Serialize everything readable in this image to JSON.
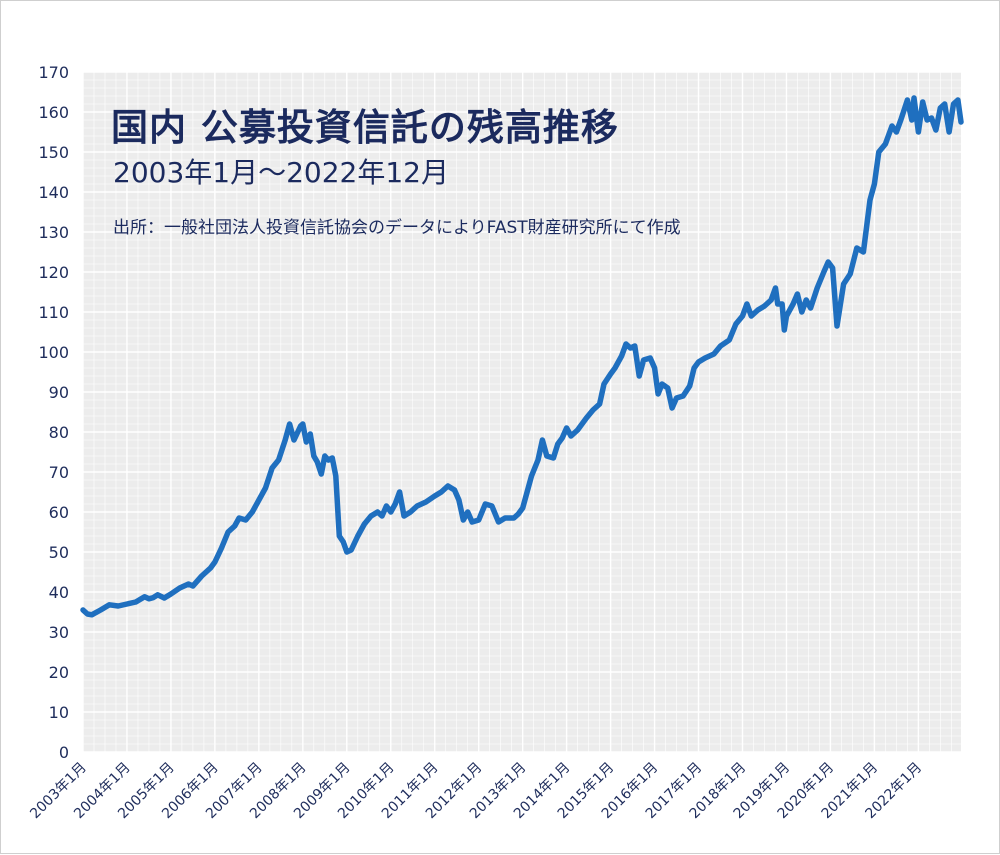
{
  "chart_data": {
    "type": "line",
    "title": "国内 公募投資信託の残高推移",
    "subtitle": "2003年1月〜2022年12月",
    "source": "出所：一般社団法人投資信託協会のデータによりFAST財産研究所にて作成",
    "xlabel": "",
    "ylabel": "",
    "ylim": [
      0,
      170
    ],
    "yticks": [
      0,
      10,
      20,
      30,
      40,
      50,
      60,
      70,
      80,
      90,
      100,
      110,
      120,
      130,
      140,
      150,
      160,
      170
    ],
    "xticks": [
      "2003年1月",
      "2004年1月",
      "2005年1月",
      "2006年1月",
      "2007年1月",
      "2008年1月",
      "2009年1月",
      "2010年1月",
      "2011年1月",
      "2012年1月",
      "2013年1月",
      "2014年1月",
      "2015年1月",
      "2016年1月",
      "2017年1月",
      "2018年1月",
      "2019年1月",
      "2020年1月",
      "2021年1月",
      "2022年1月"
    ],
    "grid": true,
    "line_color": "#1f6fbf",
    "series": [
      {
        "points": [
          [
            2003.0,
            35.5
          ],
          [
            2003.1,
            34.5
          ],
          [
            2003.2,
            34.3
          ],
          [
            2003.4,
            35.5
          ],
          [
            2003.6,
            36.8
          ],
          [
            2003.8,
            36.5
          ],
          [
            2004.0,
            37.0
          ],
          [
            2004.2,
            37.5
          ],
          [
            2004.4,
            38.8
          ],
          [
            2004.5,
            38.3
          ],
          [
            2004.6,
            38.6
          ],
          [
            2004.7,
            39.3
          ],
          [
            2004.85,
            38.5
          ],
          [
            2005.0,
            39.5
          ],
          [
            2005.2,
            41.0
          ],
          [
            2005.4,
            42.0
          ],
          [
            2005.5,
            41.5
          ],
          [
            2005.7,
            44.0
          ],
          [
            2005.9,
            46.0
          ],
          [
            2006.0,
            47.5
          ],
          [
            2006.15,
            51.0
          ],
          [
            2006.3,
            55.0
          ],
          [
            2006.45,
            56.5
          ],
          [
            2006.55,
            58.5
          ],
          [
            2006.7,
            58.0
          ],
          [
            2006.85,
            60.0
          ],
          [
            2007.0,
            63.0
          ],
          [
            2007.15,
            66.0
          ],
          [
            2007.3,
            71.0
          ],
          [
            2007.45,
            73.0
          ],
          [
            2007.6,
            78.0
          ],
          [
            2007.7,
            82.0
          ],
          [
            2007.8,
            78.0
          ],
          [
            2007.95,
            81.5
          ],
          [
            2008.0,
            82.0
          ],
          [
            2008.08,
            77.5
          ],
          [
            2008.17,
            79.5
          ],
          [
            2008.25,
            74.0
          ],
          [
            2008.33,
            72.5
          ],
          [
            2008.42,
            69.5
          ],
          [
            2008.5,
            74.0
          ],
          [
            2008.58,
            73.0
          ],
          [
            2008.67,
            73.5
          ],
          [
            2008.75,
            69.0
          ],
          [
            2008.83,
            54.0
          ],
          [
            2008.92,
            52.5
          ],
          [
            2009.0,
            50.0
          ],
          [
            2009.1,
            50.5
          ],
          [
            2009.25,
            54.0
          ],
          [
            2009.4,
            57.0
          ],
          [
            2009.55,
            59.0
          ],
          [
            2009.7,
            60.0
          ],
          [
            2009.8,
            59.0
          ],
          [
            2009.9,
            61.5
          ],
          [
            2010.0,
            60.0
          ],
          [
            2010.1,
            62.0
          ],
          [
            2010.2,
            65.0
          ],
          [
            2010.3,
            59.0
          ],
          [
            2010.45,
            60.0
          ],
          [
            2010.6,
            61.5
          ],
          [
            2010.8,
            62.5
          ],
          [
            2011.0,
            64.0
          ],
          [
            2011.15,
            65.0
          ],
          [
            2011.3,
            66.5
          ],
          [
            2011.45,
            65.5
          ],
          [
            2011.55,
            63.0
          ],
          [
            2011.65,
            58.0
          ],
          [
            2011.75,
            60.0
          ],
          [
            2011.85,
            57.5
          ],
          [
            2012.0,
            58.0
          ],
          [
            2012.15,
            62.0
          ],
          [
            2012.3,
            61.5
          ],
          [
            2012.45,
            57.5
          ],
          [
            2012.6,
            58.5
          ],
          [
            2012.8,
            58.5
          ],
          [
            2012.9,
            59.5
          ],
          [
            2013.0,
            61.0
          ],
          [
            2013.1,
            65.0
          ],
          [
            2013.2,
            69.0
          ],
          [
            2013.35,
            73.0
          ],
          [
            2013.45,
            78.0
          ],
          [
            2013.55,
            74.0
          ],
          [
            2013.7,
            73.5
          ],
          [
            2013.8,
            77.0
          ],
          [
            2013.9,
            78.5
          ],
          [
            2014.0,
            81.0
          ],
          [
            2014.1,
            79.0
          ],
          [
            2014.25,
            80.5
          ],
          [
            2014.45,
            83.5
          ],
          [
            2014.6,
            85.5
          ],
          [
            2014.75,
            87.0
          ],
          [
            2014.85,
            92.0
          ],
          [
            2015.0,
            94.5
          ],
          [
            2015.1,
            96.0
          ],
          [
            2015.25,
            99.0
          ],
          [
            2015.35,
            102.0
          ],
          [
            2015.45,
            101.0
          ],
          [
            2015.55,
            101.5
          ],
          [
            2015.65,
            94.0
          ],
          [
            2015.75,
            98.0
          ],
          [
            2015.9,
            98.5
          ],
          [
            2016.0,
            96.0
          ],
          [
            2016.08,
            89.5
          ],
          [
            2016.17,
            92.0
          ],
          [
            2016.3,
            91.0
          ],
          [
            2016.4,
            86.0
          ],
          [
            2016.5,
            88.5
          ],
          [
            2016.65,
            89.0
          ],
          [
            2016.8,
            91.5
          ],
          [
            2016.9,
            96.0
          ],
          [
            2017.0,
            97.5
          ],
          [
            2017.15,
            98.5
          ],
          [
            2017.35,
            99.5
          ],
          [
            2017.5,
            101.5
          ],
          [
            2017.7,
            103.0
          ],
          [
            2017.85,
            107.0
          ],
          [
            2018.0,
            109.0
          ],
          [
            2018.1,
            112.0
          ],
          [
            2018.2,
            109.0
          ],
          [
            2018.35,
            110.5
          ],
          [
            2018.5,
            111.5
          ],
          [
            2018.65,
            113.0
          ],
          [
            2018.75,
            116.0
          ],
          [
            2018.8,
            112.0
          ],
          [
            2018.9,
            112.0
          ],
          [
            2018.95,
            105.5
          ],
          [
            2019.0,
            109.0
          ],
          [
            2019.15,
            112.0
          ],
          [
            2019.25,
            114.5
          ],
          [
            2019.35,
            110.0
          ],
          [
            2019.45,
            113.0
          ],
          [
            2019.55,
            111.0
          ],
          [
            2019.7,
            116.0
          ],
          [
            2019.85,
            120.0
          ],
          [
            2019.95,
            122.5
          ],
          [
            2020.05,
            121.0
          ],
          [
            2020.15,
            106.5
          ],
          [
            2020.3,
            117.0
          ],
          [
            2020.45,
            119.5
          ],
          [
            2020.6,
            126.0
          ],
          [
            2020.75,
            125.0
          ],
          [
            2020.9,
            138.0
          ],
          [
            2021.0,
            142.0
          ],
          [
            2021.1,
            150.0
          ],
          [
            2021.25,
            152.0
          ],
          [
            2021.4,
            156.5
          ],
          [
            2021.5,
            155.0
          ],
          [
            2021.6,
            158.0
          ],
          [
            2021.75,
            163.0
          ],
          [
            2021.85,
            158.0
          ],
          [
            2021.9,
            163.5
          ],
          [
            2022.0,
            155.0
          ],
          [
            2022.1,
            162.5
          ],
          [
            2022.2,
            158.0
          ],
          [
            2022.3,
            158.5
          ],
          [
            2022.4,
            155.5
          ],
          [
            2022.5,
            161.0
          ],
          [
            2022.6,
            162.0
          ],
          [
            2022.7,
            155.0
          ],
          [
            2022.8,
            162.0
          ],
          [
            2022.9,
            163.0
          ],
          [
            2022.97,
            157.5
          ]
        ]
      }
    ]
  }
}
